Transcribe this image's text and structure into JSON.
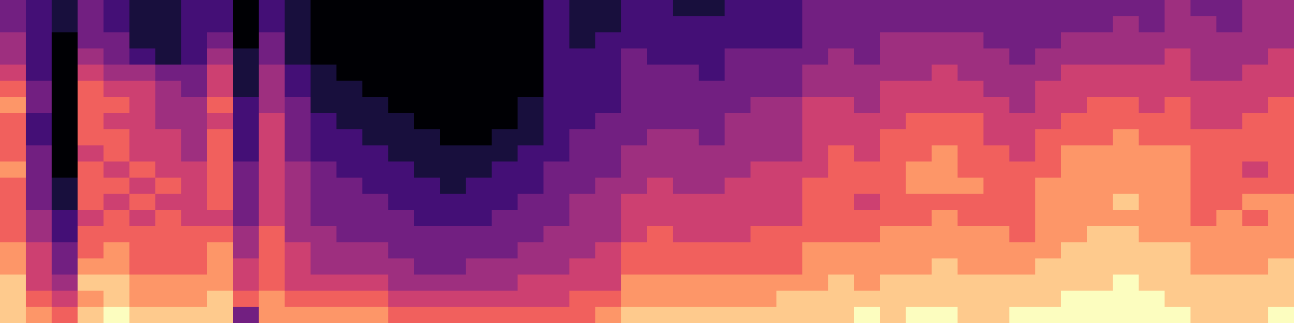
{
  "chart_data": {
    "type": "heatmap",
    "color": "magma",
    "tick_labels": false,
    "crange": [
      0,
      9
    ],
    "cells": [
      [
        3,
        3,
        4,
        4,
        5,
        6,
        7,
        6,
        6,
        6,
        7,
        6,
        6,
        6,
        6,
        7,
        7,
        8,
        8,
        8
      ],
      [
        2,
        2,
        2,
        2,
        2,
        3,
        3,
        2,
        2,
        3,
        3,
        3,
        3,
        4,
        4,
        5,
        5,
        5,
        6,
        7
      ],
      [
        1,
        1,
        0,
        0,
        0,
        0,
        0,
        0,
        0,
        0,
        0,
        1,
        1,
        2,
        2,
        3,
        3,
        4,
        5,
        6
      ],
      [
        3,
        3,
        3,
        4,
        5,
        6,
        6,
        6,
        6,
        5,
        6,
        6,
        6,
        5,
        6,
        6,
        7,
        8,
        7,
        8
      ],
      [
        2,
        2,
        3,
        3,
        4,
        5,
        6,
        5,
        6,
        6,
        5,
        6,
        5,
        6,
        6,
        7,
        7,
        8,
        8,
        9
      ],
      [
        1,
        1,
        1,
        2,
        4,
        5,
        5,
        5,
        5,
        5,
        6,
        5,
        6,
        5,
        6,
        6,
        6,
        7,
        7,
        8
      ],
      [
        1,
        1,
        1,
        1,
        3,
        4,
        4,
        4,
        5,
        5,
        5,
        6,
        5,
        6,
        6,
        6,
        6,
        7,
        7,
        8
      ],
      [
        2,
        2,
        2,
        2,
        3,
        3,
        4,
        4,
        4,
        4,
        5,
        5,
        5,
        5,
        6,
        6,
        6,
        7,
        7,
        8
      ],
      [
        2,
        2,
        3,
        4,
        5,
        5,
        6,
        5,
        6,
        6,
        6,
        6,
        6,
        5,
        6,
        7,
        7,
        7,
        8,
        8
      ],
      [
        0,
        0,
        0,
        1,
        1,
        1,
        2,
        2,
        2,
        2,
        3,
        3,
        3,
        3,
        4,
        4,
        5,
        5,
        6,
        3
      ],
      [
        2,
        2,
        3,
        3,
        4,
        4,
        4,
        5,
        5,
        5,
        5,
        5,
        5,
        5,
        6,
        6,
        6,
        6,
        7,
        7
      ],
      [
        1,
        1,
        1,
        1,
        2,
        2,
        3,
        3,
        3,
        3,
        4,
        4,
        4,
        4,
        4,
        5,
        5,
        5,
        6,
        7
      ],
      [
        0,
        0,
        0,
        0,
        1,
        1,
        1,
        2,
        2,
        2,
        3,
        3,
        3,
        3,
        4,
        4,
        4,
        5,
        6,
        7
      ],
      [
        0,
        0,
        0,
        0,
        0,
        1,
        1,
        1,
        2,
        2,
        2,
        3,
        3,
        3,
        3,
        4,
        4,
        5,
        6,
        7
      ],
      [
        0,
        0,
        0,
        0,
        0,
        0,
        1,
        1,
        1,
        2,
        2,
        2,
        3,
        3,
        3,
        4,
        4,
        5,
        6,
        7
      ],
      [
        0,
        0,
        0,
        0,
        0,
        0,
        0,
        1,
        1,
        1,
        2,
        2,
        2,
        3,
        3,
        3,
        4,
        4,
        5,
        6
      ],
      [
        0,
        0,
        0,
        0,
        0,
        0,
        0,
        0,
        1,
        1,
        1,
        2,
        2,
        2,
        3,
        3,
        3,
        4,
        5,
        6
      ],
      [
        0,
        0,
        0,
        0,
        0,
        0,
        0,
        0,
        0,
        1,
        1,
        1,
        2,
        2,
        3,
        3,
        3,
        4,
        5,
        6
      ],
      [
        0,
        0,
        0,
        0,
        0,
        0,
        0,
        0,
        0,
        1,
        1,
        2,
        2,
        2,
        3,
        3,
        4,
        4,
        5,
        6
      ],
      [
        0,
        0,
        0,
        0,
        0,
        0,
        0,
        0,
        1,
        1,
        2,
        2,
        2,
        3,
        3,
        3,
        4,
        4,
        5,
        6
      ],
      [
        0,
        0,
        0,
        0,
        0,
        0,
        1,
        1,
        1,
        2,
        2,
        2,
        3,
        3,
        3,
        4,
        4,
        5,
        5,
        6
      ],
      [
        2,
        2,
        2,
        2,
        2,
        2,
        2,
        2,
        2,
        2,
        3,
        3,
        3,
        3,
        4,
        4,
        4,
        5,
        5,
        6
      ],
      [
        1,
        1,
        1,
        2,
        2,
        2,
        2,
        2,
        3,
        3,
        3,
        3,
        4,
        4,
        4,
        4,
        5,
        5,
        6,
        6
      ],
      [
        1,
        1,
        2,
        2,
        2,
        2,
        2,
        3,
        3,
        3,
        3,
        4,
        4,
        4,
        4,
        5,
        5,
        5,
        6,
        7
      ],
      [
        2,
        2,
        2,
        3,
        3,
        3,
        3,
        3,
        3,
        4,
        4,
        4,
        5,
        5,
        5,
        6,
        6,
        7,
        7,
        8
      ],
      [
        2,
        2,
        2,
        2,
        3,
        3,
        3,
        3,
        4,
        4,
        4,
        5,
        5,
        5,
        6,
        6,
        6,
        7,
        7,
        8
      ],
      [
        1,
        2,
        2,
        2,
        3,
        3,
        3,
        3,
        4,
        4,
        4,
        4,
        5,
        5,
        5,
        6,
        6,
        7,
        7,
        8
      ],
      [
        1,
        2,
        2,
        2,
        2,
        3,
        3,
        3,
        3,
        4,
        4,
        4,
        5,
        5,
        5,
        6,
        6,
        7,
        7,
        8
      ],
      [
        2,
        2,
        2,
        3,
        3,
        3,
        3,
        4,
        4,
        4,
        4,
        5,
        5,
        5,
        5,
        6,
        6,
        7,
        7,
        8
      ],
      [
        2,
        2,
        2,
        3,
        3,
        3,
        4,
        4,
        4,
        4,
        5,
        5,
        5,
        5,
        6,
        6,
        6,
        7,
        7,
        8
      ],
      [
        2,
        2,
        2,
        3,
        3,
        3,
        4,
        4,
        4,
        4,
        5,
        5,
        5,
        5,
        6,
        6,
        6,
        7,
        8,
        8
      ],
      [
        3,
        3,
        3,
        3,
        4,
        4,
        5,
        5,
        5,
        5,
        5,
        6,
        6,
        6,
        6,
        7,
        7,
        7,
        8,
        8
      ],
      [
        3,
        3,
        3,
        4,
        4,
        4,
        5,
        5,
        5,
        6,
        6,
        6,
        6,
        6,
        6,
        7,
        7,
        8,
        8,
        8
      ],
      [
        3,
        3,
        3,
        3,
        4,
        4,
        4,
        5,
        5,
        5,
        6,
        6,
        5,
        6,
        6,
        7,
        7,
        7,
        8,
        9
      ],
      [
        3,
        3,
        4,
        4,
        4,
        5,
        5,
        5,
        6,
        6,
        6,
        6,
        6,
        6,
        7,
        7,
        7,
        8,
        8,
        8
      ],
      [
        3,
        3,
        4,
        4,
        4,
        5,
        5,
        6,
        6,
        6,
        7,
        7,
        6,
        6,
        7,
        7,
        7,
        8,
        8,
        9
      ],
      [
        3,
        3,
        4,
        4,
        5,
        5,
        5,
        6,
        6,
        7,
        7,
        7,
        6,
        7,
        7,
        7,
        8,
        8,
        8,
        9
      ],
      [
        3,
        3,
        4,
        4,
        4,
        5,
        5,
        6,
        6,
        6,
        6,
        7,
        6,
        6,
        7,
        7,
        7,
        8,
        8,
        8
      ],
      [
        3,
        3,
        3,
        4,
        4,
        4,
        5,
        5,
        5,
        6,
        6,
        6,
        6,
        6,
        7,
        7,
        7,
        8,
        8,
        8
      ],
      [
        3,
        3,
        3,
        3,
        4,
        4,
        4,
        5,
        5,
        5,
        6,
        6,
        6,
        6,
        6,
        7,
        7,
        8,
        8,
        9
      ],
      [
        3,
        3,
        3,
        4,
        4,
        5,
        5,
        5,
        6,
        6,
        6,
        7,
        7,
        7,
        7,
        7,
        8,
        8,
        8,
        9
      ],
      [
        3,
        3,
        4,
        4,
        5,
        5,
        5,
        6,
        6,
        7,
        7,
        7,
        7,
        7,
        7,
        8,
        8,
        8,
        9,
        9
      ],
      [
        3,
        3,
        4,
        4,
        5,
        5,
        6,
        6,
        6,
        7,
        7,
        7,
        7,
        7,
        8,
        8,
        8,
        8,
        9,
        9
      ],
      [
        3,
        4,
        4,
        4,
        5,
        5,
        6,
        6,
        7,
        7,
        7,
        7,
        8,
        7,
        8,
        8,
        8,
        9,
        9,
        9
      ],
      [
        3,
        3,
        4,
        4,
        5,
        5,
        5,
        6,
        6,
        7,
        7,
        7,
        7,
        7,
        7,
        8,
        8,
        8,
        9,
        9
      ],
      [
        4,
        4,
        4,
        5,
        5,
        5,
        6,
        6,
        6,
        7,
        7,
        7,
        7,
        7,
        7,
        8,
        8,
        8,
        8,
        9
      ],
      [
        3,
        4,
        4,
        4,
        4,
        5,
        5,
        5,
        6,
        6,
        6,
        6,
        6,
        6,
        7,
        7,
        7,
        8,
        8,
        8
      ],
      [
        3,
        3,
        4,
        4,
        4,
        5,
        5,
        5,
        6,
        6,
        6,
        6,
        6,
        7,
        7,
        7,
        7,
        8,
        8,
        8
      ],
      [
        4,
        4,
        4,
        4,
        5,
        5,
        5,
        6,
        6,
        6,
        5,
        6,
        7,
        6,
        7,
        7,
        7,
        8,
        8,
        8
      ],
      [
        4,
        4,
        4,
        5,
        5,
        5,
        6,
        6,
        6,
        6,
        6,
        6,
        7,
        7,
        7,
        7,
        8,
        8,
        8,
        9
      ]
    ]
  }
}
